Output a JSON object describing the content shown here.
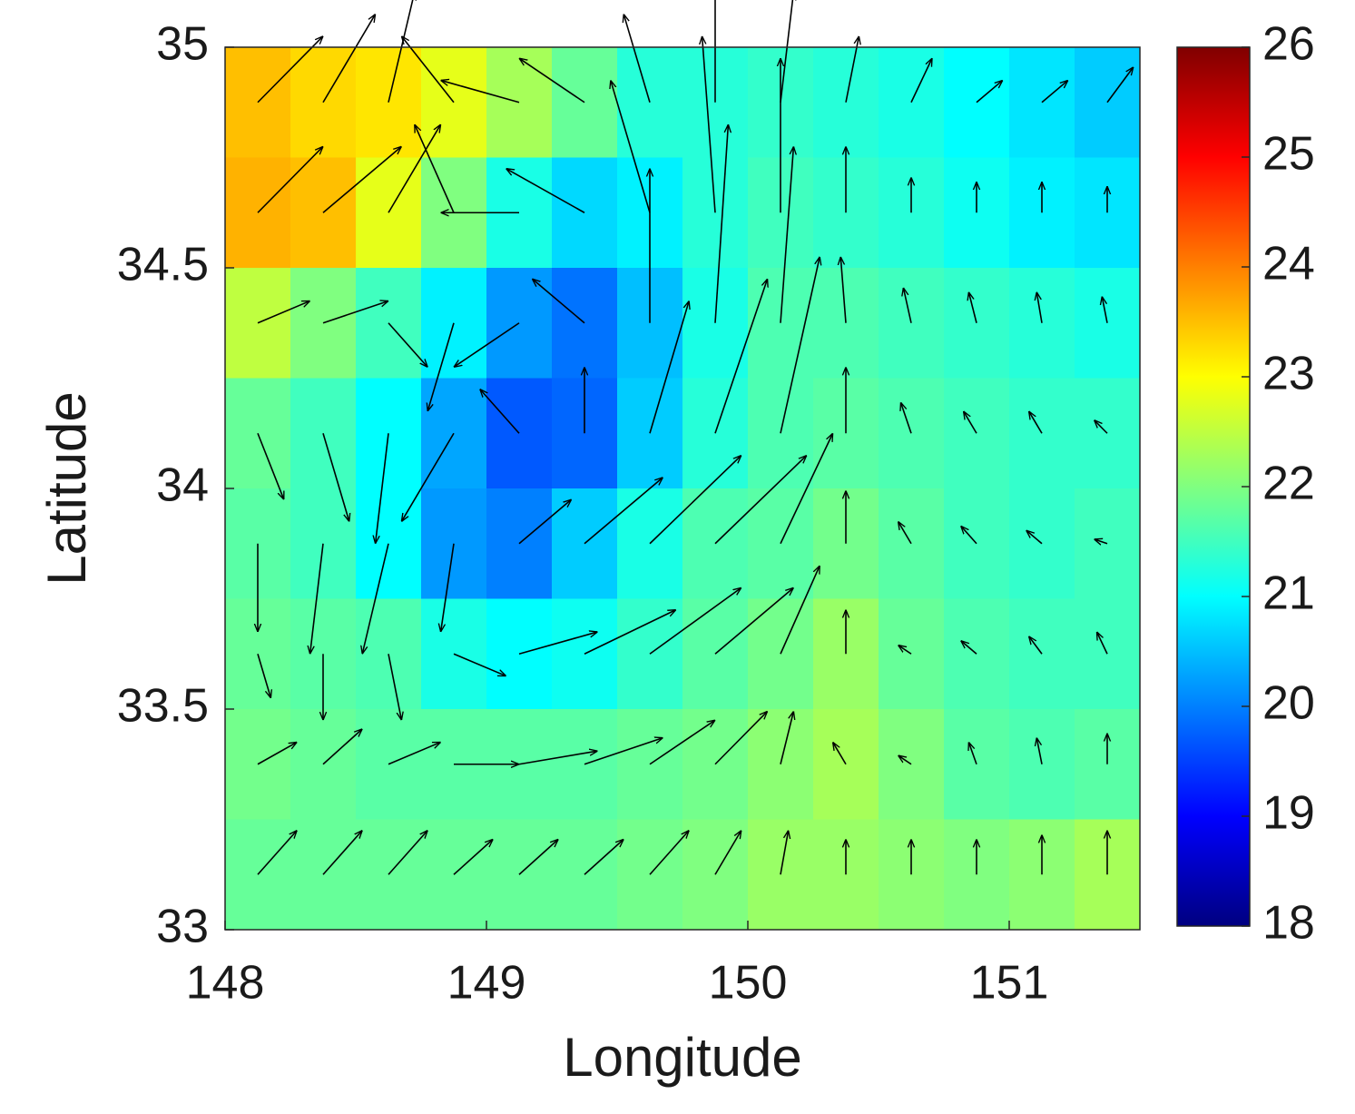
{
  "chart_data": {
    "type": "heatmap-quiver",
    "xlabel": "Longitude",
    "ylabel": "Latitude",
    "xlim": [
      148,
      151.5
    ],
    "ylim": [
      33,
      35
    ],
    "xticks": [
      148,
      149,
      150,
      151
    ],
    "yticks": [
      33,
      33.5,
      34,
      34.5,
      35
    ],
    "colormap": "jet",
    "clim": [
      18,
      26
    ],
    "cticks": [
      18,
      19,
      20,
      21,
      22,
      23,
      24,
      25,
      26
    ],
    "arrow_color": "#000000",
    "x": [
      148.125,
      148.375,
      148.625,
      148.875,
      149.125,
      149.375,
      149.625,
      149.875,
      150.125,
      150.375,
      150.625,
      150.875,
      151.125,
      151.375
    ],
    "y": [
      34.875,
      34.625,
      34.375,
      34.125,
      33.875,
      33.625,
      33.375,
      33.125
    ],
    "values": [
      [
        23.5,
        23.3,
        23.2,
        22.8,
        22.3,
        21.8,
        21.3,
        21.3,
        21.4,
        21.3,
        21.2,
        21.0,
        20.8,
        20.6
      ],
      [
        23.6,
        23.5,
        22.8,
        22.0,
        21.2,
        20.7,
        20.9,
        21.3,
        21.5,
        21.4,
        21.3,
        21.1,
        20.9,
        20.8
      ],
      [
        22.5,
        22.0,
        21.5,
        20.9,
        20.2,
        19.9,
        20.5,
        21.2,
        21.6,
        21.6,
        21.5,
        21.4,
        21.3,
        21.2
      ],
      [
        21.8,
        21.5,
        21.0,
        20.3,
        19.7,
        19.8,
        20.6,
        21.3,
        21.6,
        21.7,
        21.6,
        21.5,
        21.4,
        21.4
      ],
      [
        21.7,
        21.5,
        21.0,
        20.2,
        20.0,
        20.6,
        21.2,
        21.6,
        21.7,
        21.9,
        21.7,
        21.5,
        21.4,
        21.5
      ],
      [
        21.8,
        21.7,
        21.6,
        21.2,
        21.0,
        21.1,
        21.4,
        21.7,
        21.9,
        22.2,
        21.8,
        21.6,
        21.5,
        21.5
      ],
      [
        21.9,
        21.8,
        21.7,
        21.7,
        21.7,
        21.7,
        21.8,
        21.9,
        22.1,
        22.3,
        22.0,
        21.7,
        21.6,
        21.7
      ],
      [
        21.8,
        21.8,
        21.8,
        21.8,
        21.8,
        21.8,
        21.9,
        22.0,
        22.2,
        22.2,
        22.1,
        22.0,
        22.1,
        22.3
      ]
    ],
    "u": [
      [
        0.25,
        0.2,
        0.1,
        -0.2,
        -0.3,
        -0.25,
        -0.1,
        0.0,
        0.05,
        0.05,
        0.08,
        0.1,
        0.1,
        0.1
      ],
      [
        0.25,
        0.3,
        0.2,
        -0.15,
        -0.3,
        -0.3,
        -0.15,
        -0.05,
        0.0,
        0.0,
        0.0,
        0.0,
        0.0,
        0.0
      ],
      [
        0.2,
        0.25,
        0.15,
        -0.1,
        -0.25,
        -0.2,
        0.0,
        0.05,
        0.05,
        -0.02,
        -0.03,
        -0.03,
        -0.02,
        -0.02
      ],
      [
        0.1,
        0.1,
        -0.05,
        -0.2,
        -0.15,
        0.0,
        0.15,
        0.2,
        0.15,
        0.0,
        -0.04,
        -0.05,
        -0.05,
        -0.05
      ],
      [
        0.0,
        -0.05,
        -0.1,
        -0.05,
        0.2,
        0.3,
        0.35,
        0.35,
        0.2,
        0.0,
        -0.05,
        -0.06,
        -0.06,
        -0.05
      ],
      [
        0.05,
        0.0,
        0.05,
        0.2,
        0.3,
        0.35,
        0.35,
        0.3,
        0.15,
        0.0,
        -0.05,
        -0.06,
        -0.05,
        -0.04
      ],
      [
        0.15,
        0.15,
        0.2,
        0.25,
        0.3,
        0.3,
        0.25,
        0.2,
        0.05,
        -0.05,
        -0.05,
        -0.03,
        -0.02,
        0.0
      ],
      [
        0.15,
        0.15,
        0.15,
        0.15,
        0.15,
        0.15,
        0.15,
        0.1,
        0.03,
        0.0,
        0.0,
        0.0,
        0.0,
        0.0
      ]
    ],
    "v": [
      [
        0.15,
        0.2,
        0.25,
        0.15,
        0.05,
        0.1,
        0.2,
        0.3,
        0.25,
        0.15,
        0.1,
        0.05,
        0.05,
        0.08
      ],
      [
        0.15,
        0.15,
        0.2,
        0.2,
        0.0,
        0.1,
        0.3,
        0.4,
        0.35,
        0.15,
        0.08,
        0.07,
        0.07,
        0.06
      ],
      [
        0.05,
        0.05,
        -0.1,
        -0.2,
        -0.1,
        0.1,
        0.35,
        0.45,
        0.4,
        0.15,
        0.08,
        0.07,
        0.07,
        0.06
      ],
      [
        -0.15,
        -0.2,
        -0.25,
        -0.2,
        0.1,
        0.15,
        0.3,
        0.35,
        0.4,
        0.15,
        0.07,
        0.05,
        0.05,
        0.03
      ],
      [
        -0.2,
        -0.25,
        -0.25,
        -0.2,
        0.1,
        0.15,
        0.2,
        0.2,
        0.25,
        0.12,
        0.05,
        0.04,
        0.03,
        0.01
      ],
      [
        -0.1,
        -0.15,
        -0.15,
        -0.05,
        0.05,
        0.1,
        0.15,
        0.15,
        0.2,
        0.1,
        0.02,
        0.03,
        0.04,
        0.05
      ],
      [
        0.05,
        0.08,
        0.05,
        0.0,
        0.03,
        0.06,
        0.1,
        0.12,
        0.12,
        0.05,
        0.02,
        0.05,
        0.06,
        0.07
      ],
      [
        0.1,
        0.1,
        0.1,
        0.08,
        0.08,
        0.08,
        0.1,
        0.1,
        0.1,
        0.08,
        0.08,
        0.08,
        0.09,
        0.1
      ]
    ]
  }
}
